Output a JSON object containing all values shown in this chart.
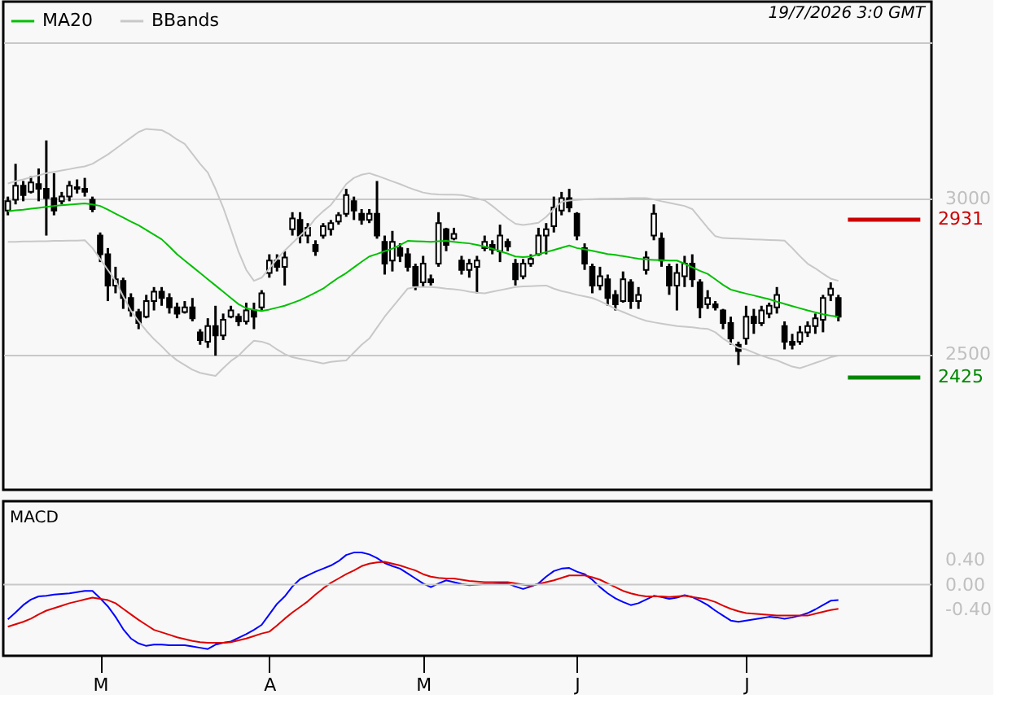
{
  "chart_data": [
    {
      "type": "candlestick",
      "categories": [
        null,
        null,
        null,
        null,
        null,
        null,
        null,
        null,
        null,
        null,
        null,
        null,
        null,
        null,
        null,
        null,
        null,
        null,
        null,
        null,
        null,
        null,
        null,
        null,
        null,
        null,
        null,
        null,
        null,
        null,
        null,
        null,
        null,
        null,
        null,
        null,
        null,
        null,
        null,
        null,
        null,
        null,
        null,
        null,
        null,
        null,
        null,
        null,
        null,
        null,
        null,
        null,
        null,
        null,
        null,
        null,
        null,
        null,
        null,
        null,
        null,
        null,
        null,
        null,
        null,
        null,
        null,
        null,
        null,
        null,
        null,
        null,
        null,
        null,
        null,
        null,
        null,
        null,
        null,
        null,
        null,
        null,
        null,
        null,
        null,
        null,
        null,
        null,
        null,
        null,
        null,
        null,
        null,
        null,
        null,
        null,
        null,
        null,
        null,
        null,
        null,
        null,
        null,
        null,
        null,
        null,
        null,
        null,
        null
      ],
      "ohlc": [
        [
          2960,
          3005,
          2945,
          2990
        ],
        [
          2995,
          3110,
          2980,
          3040
        ],
        [
          3040,
          3055,
          2990,
          3010
        ],
        [
          3020,
          3070,
          3015,
          3050
        ],
        [
          3045,
          3095,
          2990,
          3030
        ],
        [
          3030,
          3185,
          2880,
          3000
        ],
        [
          3000,
          3080,
          2945,
          2960
        ],
        [
          2990,
          3020,
          2980,
          3005
        ],
        [
          3005,
          3055,
          2990,
          3040
        ],
        [
          3035,
          3060,
          3015,
          3030
        ],
        [
          3030,
          3065,
          3005,
          3020
        ],
        [
          2995,
          3005,
          2955,
          2965
        ],
        [
          2880,
          2890,
          2795,
          2820
        ],
        [
          2820,
          2840,
          2670,
          2720
        ],
        [
          2720,
          2780,
          2695,
          2740
        ],
        [
          2735,
          2745,
          2645,
          2680
        ],
        [
          2680,
          2695,
          2620,
          2640
        ],
        [
          2635,
          2645,
          2580,
          2600
        ],
        [
          2620,
          2690,
          2615,
          2670
        ],
        [
          2670,
          2715,
          2640,
          2700
        ],
        [
          2700,
          2715,
          2655,
          2680
        ],
        [
          2680,
          2695,
          2630,
          2650
        ],
        [
          2650,
          2665,
          2615,
          2630
        ],
        [
          2635,
          2670,
          2630,
          2650
        ],
        [
          2650,
          2680,
          2605,
          2615
        ],
        [
          2570,
          2580,
          2530,
          2545
        ],
        [
          2540,
          2615,
          2520,
          2590
        ],
        [
          2590,
          2655,
          2495,
          2560
        ],
        [
          2560,
          2630,
          2545,
          2610
        ],
        [
          2620,
          2655,
          2615,
          2640
        ],
        [
          2620,
          2630,
          2590,
          2605
        ],
        [
          2605,
          2665,
          2595,
          2640
        ],
        [
          2640,
          2665,
          2580,
          2620
        ],
        [
          2650,
          2705,
          2640,
          2695
        ],
        [
          2760,
          2820,
          2745,
          2800
        ],
        [
          2800,
          2820,
          2765,
          2780
        ],
        [
          2780,
          2830,
          2720,
          2810
        ],
        [
          2900,
          2955,
          2880,
          2935
        ],
        [
          2930,
          2955,
          2855,
          2880
        ],
        [
          2880,
          2920,
          2855,
          2905
        ],
        [
          2850,
          2865,
          2815,
          2830
        ],
        [
          2880,
          2920,
          2870,
          2910
        ],
        [
          2900,
          2930,
          2880,
          2920
        ],
        [
          2925,
          2955,
          2915,
          2945
        ],
        [
          2950,
          3030,
          2940,
          3010
        ],
        [
          2990,
          3005,
          2930,
          2960
        ],
        [
          2950,
          2965,
          2915,
          2930
        ],
        [
          2930,
          2965,
          2920,
          2950
        ],
        [
          2950,
          3055,
          2870,
          2880
        ],
        [
          2860,
          2880,
          2755,
          2790
        ],
        [
          2800,
          2895,
          2765,
          2860
        ],
        [
          2840,
          2855,
          2795,
          2815
        ],
        [
          2820,
          2840,
          2765,
          2780
        ],
        [
          2780,
          2790,
          2705,
          2720
        ],
        [
          2730,
          2815,
          2715,
          2790
        ],
        [
          2740,
          2755,
          2720,
          2730
        ],
        [
          2790,
          2955,
          2780,
          2920
        ],
        [
          2900,
          2905,
          2830,
          2850
        ],
        [
          2870,
          2905,
          2865,
          2885
        ],
        [
          2800,
          2815,
          2755,
          2770
        ],
        [
          2770,
          2805,
          2745,
          2790
        ],
        [
          2780,
          2815,
          2695,
          2800
        ],
        [
          2840,
          2880,
          2830,
          2860
        ],
        [
          2850,
          2865,
          2820,
          2835
        ],
        [
          2830,
          2915,
          2795,
          2880
        ],
        [
          2860,
          2870,
          2830,
          2845
        ],
        [
          2790,
          2805,
          2720,
          2740
        ],
        [
          2750,
          2805,
          2740,
          2790
        ],
        [
          2790,
          2820,
          2780,
          2805
        ],
        [
          2820,
          2905,
          2815,
          2880
        ],
        [
          2880,
          2920,
          2820,
          2900
        ],
        [
          2910,
          3005,
          2890,
          2970
        ],
        [
          2960,
          3020,
          2945,
          3000
        ],
        [
          3000,
          3030,
          2955,
          2970
        ],
        [
          2950,
          2955,
          2865,
          2880
        ],
        [
          2840,
          2855,
          2770,
          2790
        ],
        [
          2780,
          2790,
          2695,
          2720
        ],
        [
          2720,
          2780,
          2705,
          2750
        ],
        [
          2740,
          2755,
          2655,
          2680
        ],
        [
          2690,
          2705,
          2640,
          2660
        ],
        [
          2670,
          2765,
          2665,
          2740
        ],
        [
          2730,
          2740,
          2645,
          2670
        ],
        [
          2670,
          2715,
          2645,
          2690
        ],
        [
          2770,
          2830,
          2755,
          2810
        ],
        [
          2880,
          2980,
          2865,
          2950
        ],
        [
          2870,
          2890,
          2780,
          2800
        ],
        [
          2780,
          2790,
          2690,
          2720
        ],
        [
          2720,
          2790,
          2640,
          2760
        ],
        [
          2750,
          2815,
          2715,
          2790
        ],
        [
          2790,
          2820,
          2715,
          2740
        ],
        [
          2730,
          2740,
          2615,
          2650
        ],
        [
          2660,
          2705,
          2645,
          2680
        ],
        [
          2660,
          2670,
          2640,
          2650
        ],
        [
          2640,
          2645,
          2580,
          2600
        ],
        [
          2600,
          2620,
          2530,
          2550
        ],
        [
          2530,
          2540,
          2465,
          2510
        ],
        [
          2550,
          2655,
          2530,
          2620
        ],
        [
          2620,
          2645,
          2565,
          2600
        ],
        [
          2600,
          2655,
          2590,
          2640
        ],
        [
          2630,
          2665,
          2615,
          2655
        ],
        [
          2650,
          2715,
          2630,
          2690
        ],
        [
          2590,
          2605,
          2515,
          2540
        ],
        [
          2540,
          2565,
          2515,
          2530
        ],
        [
          2540,
          2590,
          2530,
          2570
        ],
        [
          2570,
          2605,
          2555,
          2590
        ],
        [
          2590,
          2630,
          2565,
          2615
        ],
        [
          2610,
          2690,
          2570,
          2680
        ],
        [
          2690,
          2730,
          2670,
          2710
        ],
        [
          2680,
          2690,
          2605,
          2620
        ]
      ],
      "series": [
        {
          "name": "MA20",
          "type": "line",
          "color": "#00c000",
          "values": [
            2958,
            2961,
            2963,
            2966,
            2969,
            2972,
            2975,
            2977,
            2979,
            2981,
            2983,
            2980,
            2975,
            2963,
            2950,
            2938,
            2925,
            2913,
            2898,
            2883,
            2868,
            2845,
            2820,
            2800,
            2780,
            2760,
            2740,
            2720,
            2700,
            2680,
            2660,
            2647,
            2642,
            2638,
            2643,
            2649,
            2655,
            2664,
            2673,
            2685,
            2697,
            2710,
            2728,
            2745,
            2760,
            2778,
            2796,
            2813,
            2821,
            2830,
            2838,
            2850,
            2863,
            2862,
            2861,
            2860,
            2862,
            2863,
            2860,
            2857,
            2855,
            2850,
            2845,
            2838,
            2830,
            2822,
            2813,
            2811,
            2813,
            2820,
            2827,
            2834,
            2841,
            2848,
            2840,
            2836,
            2831,
            2826,
            2821,
            2818,
            2814,
            2810,
            2806,
            2803,
            2802,
            2801,
            2800,
            2800,
            2790,
            2778,
            2767,
            2757,
            2740,
            2722,
            2707,
            2700,
            2694,
            2688,
            2682,
            2676,
            2668,
            2661,
            2654,
            2647,
            2640,
            2634,
            2628,
            2623,
            2620
          ]
        },
        {
          "name": "BBands",
          "type": "line",
          "color": "#c8c8c8",
          "values": [
            3047,
            3054,
            3060,
            3067,
            3073,
            3080,
            3084,
            3089,
            3093,
            3098,
            3102,
            3110,
            3125,
            3140,
            3158,
            3176,
            3194,
            3212,
            3222,
            3220,
            3218,
            3205,
            3188,
            3174,
            3142,
            3110,
            3082,
            3030,
            2970,
            2900,
            2828,
            2770,
            2735,
            2745,
            2775,
            2805,
            2832,
            2856,
            2880,
            2903,
            2935,
            2958,
            2978,
            3010,
            3045,
            3065,
            3075,
            3080,
            3072,
            3063,
            3054,
            3045,
            3035,
            3026,
            3018,
            3014,
            3012,
            3011,
            3011,
            3010,
            3005,
            2999,
            2993,
            2975,
            2955,
            2935,
            2918,
            2914,
            2917,
            2921,
            2940,
            2965,
            2988,
            2992,
            2994,
            2996,
            2997,
            2998,
            2998,
            2999,
            2999,
            3000,
            3000,
            3000,
            2996,
            2990,
            2985,
            2980,
            2975,
            2965,
            2935,
            2905,
            2878,
            2872,
            2871,
            2870,
            2869,
            2868,
            2867,
            2866,
            2865,
            2864,
            2840,
            2814,
            2790,
            2775,
            2758,
            2742,
            2735
          ]
        },
        {
          "type": "line",
          "color": "#c8c8c8",
          "values": [
            2860,
            2860,
            2861,
            2861,
            2862,
            2862,
            2863,
            2863,
            2864,
            2864,
            2865,
            2840,
            2805,
            2770,
            2735,
            2685,
            2640,
            2605,
            2575,
            2548,
            2525,
            2500,
            2480,
            2465,
            2450,
            2440,
            2435,
            2430,
            2455,
            2478,
            2495,
            2520,
            2543,
            2540,
            2532,
            2515,
            2500,
            2490,
            2485,
            2480,
            2475,
            2470,
            2475,
            2478,
            2480,
            2505,
            2530,
            2550,
            2585,
            2620,
            2650,
            2680,
            2710,
            2715,
            2715,
            2715,
            2713,
            2710,
            2708,
            2705,
            2700,
            2697,
            2695,
            2700,
            2705,
            2710,
            2715,
            2717,
            2718,
            2719,
            2720,
            2710,
            2702,
            2697,
            2690,
            2685,
            2680,
            2670,
            2658,
            2645,
            2635,
            2625,
            2615,
            2607,
            2602,
            2598,
            2594,
            2590,
            2588,
            2586,
            2583,
            2581,
            2570,
            2550,
            2535,
            2520,
            2515,
            2505,
            2495,
            2487,
            2480,
            2470,
            2460,
            2455,
            2463,
            2472,
            2480,
            2490,
            2495
          ]
        }
      ],
      "ylim": [
        2065,
        3630
      ],
      "yticks": [
        {
          "value": 3500,
          "label": null
        },
        3000,
        2500
      ],
      "grid": "y",
      "tick_labels": "y",
      "legend": "top left",
      "ref_lines": [
        {
          "axis": "y",
          "value": 2931,
          "label": "2931",
          "color": "#cc0000"
        },
        {
          "axis": "y",
          "value": 2425,
          "label": "2425",
          "color": "#008800"
        }
      ],
      "annotations": [
        "19/7/2026 3:0 GMT"
      ]
    },
    {
      "type": "line",
      "title": "MACD",
      "categories": [
        null,
        null,
        null,
        null,
        null,
        null,
        null,
        null,
        null,
        null,
        null,
        null,
        "M",
        null,
        null,
        null,
        null,
        null,
        null,
        null,
        null,
        null,
        null,
        null,
        null,
        null,
        null,
        null,
        null,
        null,
        null,
        null,
        null,
        null,
        "A",
        null,
        null,
        null,
        null,
        null,
        null,
        null,
        null,
        null,
        null,
        null,
        null,
        null,
        null,
        null,
        null,
        null,
        null,
        null,
        "M",
        null,
        null,
        null,
        null,
        null,
        null,
        null,
        null,
        null,
        null,
        null,
        null,
        null,
        null,
        null,
        null,
        null,
        null,
        null,
        "J",
        null,
        null,
        null,
        null,
        null,
        null,
        null,
        null,
        null,
        null,
        null,
        null,
        null,
        null,
        null,
        null,
        null,
        null,
        null,
        null,
        null,
        "J",
        null,
        null,
        null,
        null,
        null,
        null,
        null,
        null,
        null,
        null,
        null,
        null
      ],
      "series": [
        {
          "color": "#0000ff",
          "values": [
            -0.56,
            -0.45,
            -0.33,
            -0.24,
            -0.19,
            -0.18,
            -0.16,
            -0.15,
            -0.14,
            -0.12,
            -0.1,
            -0.1,
            -0.22,
            -0.35,
            -0.52,
            -0.72,
            -0.87,
            -0.95,
            -0.99,
            -0.97,
            -0.97,
            -0.98,
            -0.98,
            -0.98,
            -1.0,
            -1.02,
            -1.04,
            -0.97,
            -0.94,
            -0.92,
            -0.86,
            -0.8,
            -0.73,
            -0.65,
            -0.48,
            -0.31,
            -0.19,
            -0.03,
            0.09,
            0.15,
            0.21,
            0.26,
            0.31,
            0.38,
            0.48,
            0.52,
            0.52,
            0.49,
            0.43,
            0.35,
            0.3,
            0.26,
            0.18,
            0.1,
            0.02,
            -0.04,
            0.02,
            0.07,
            0.04,
            0.01,
            -0.01,
            0.0,
            0.01,
            0.01,
            0.02,
            0.02,
            -0.03,
            -0.07,
            -0.03,
            0.02,
            0.13,
            0.22,
            0.26,
            0.27,
            0.21,
            0.17,
            0.08,
            -0.04,
            -0.14,
            -0.22,
            -0.28,
            -0.33,
            -0.3,
            -0.24,
            -0.18,
            -0.2,
            -0.23,
            -0.21,
            -0.17,
            -0.2,
            -0.26,
            -0.33,
            -0.42,
            -0.5,
            -0.58,
            -0.6,
            -0.58,
            -0.56,
            -0.54,
            -0.52,
            -0.53,
            -0.55,
            -0.53,
            -0.5,
            -0.46,
            -0.4,
            -0.33,
            -0.26,
            -0.25
          ]
        },
        {
          "color": "#dd0000",
          "values": [
            -0.68,
            -0.64,
            -0.6,
            -0.55,
            -0.48,
            -0.42,
            -0.38,
            -0.34,
            -0.3,
            -0.27,
            -0.24,
            -0.21,
            -0.23,
            -0.25,
            -0.3,
            -0.39,
            -0.48,
            -0.57,
            -0.65,
            -0.73,
            -0.77,
            -0.81,
            -0.85,
            -0.88,
            -0.91,
            -0.93,
            -0.94,
            -0.94,
            -0.94,
            -0.93,
            -0.9,
            -0.87,
            -0.83,
            -0.79,
            -0.76,
            -0.66,
            -0.55,
            -0.45,
            -0.36,
            -0.27,
            -0.16,
            -0.06,
            0.03,
            0.1,
            0.17,
            0.23,
            0.3,
            0.34,
            0.36,
            0.37,
            0.34,
            0.31,
            0.27,
            0.23,
            0.17,
            0.13,
            0.11,
            0.1,
            0.1,
            0.08,
            0.06,
            0.05,
            0.04,
            0.04,
            0.04,
            0.04,
            0.02,
            0.0,
            -0.02,
            0.01,
            0.04,
            0.07,
            0.11,
            0.15,
            0.15,
            0.15,
            0.12,
            0.08,
            0.02,
            -0.04,
            -0.1,
            -0.14,
            -0.17,
            -0.19,
            -0.19,
            -0.19,
            -0.2,
            -0.19,
            -0.18,
            -0.2,
            -0.22,
            -0.24,
            -0.28,
            -0.34,
            -0.39,
            -0.43,
            -0.46,
            -0.47,
            -0.48,
            -0.49,
            -0.5,
            -0.5,
            -0.5,
            -0.5,
            -0.5,
            -0.47,
            -0.44,
            -0.41,
            -0.39
          ]
        }
      ],
      "ylim": [
        -1.15,
        1.35
      ],
      "yticks": [
        {
          "value": 0.4,
          "label": "0.40"
        },
        {
          "value": 0,
          "label": "0.00"
        },
        {
          "value": -0.4,
          "label": "-0.40"
        }
      ],
      "ref_lines": [
        {
          "axis": "y",
          "value": 0,
          "color": "#c8c8c8"
        }
      ]
    }
  ]
}
